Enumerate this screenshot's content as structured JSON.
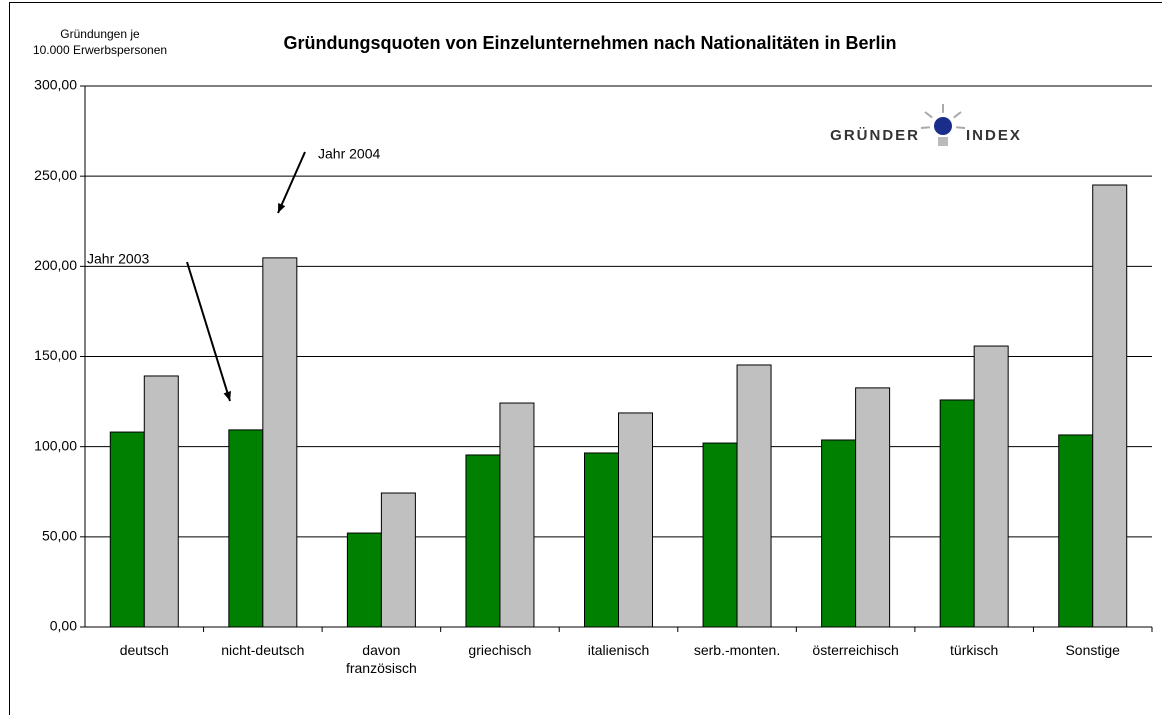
{
  "chart_data": {
    "type": "bar",
    "title": "Gründungsquoten von Einzelunternehmen nach Nationalitäten in Berlin",
    "y_label": "Gründungen je\n10.000 Erwerbspersonen",
    "categories": [
      "deutsch",
      "nicht-deutsch",
      "davon\nfranzösisch",
      "griechisch",
      "italienisch",
      "serb.-monten.",
      "österreichisch",
      "türkisch",
      "Sonstige"
    ],
    "series": [
      {
        "color": "#008000",
        "values": [
          108.1,
          109.3,
          52.1,
          95.4,
          96.5,
          102.0,
          103.7,
          125.9,
          106.5
        ]
      },
      {
        "color": "#c0c0c0",
        "values": [
          139.2,
          204.7,
          74.3,
          124.2,
          118.7,
          145.3,
          132.6,
          155.8,
          245.1
        ]
      }
    ],
    "annotations": [
      "Jahr 2004",
      "Jahr 2003"
    ],
    "logo": [
      "GRÜNDER",
      "INDEX"
    ],
    "ylim": [
      0,
      300
    ],
    "yticks": [
      {
        "value": 0,
        "label": "0,00"
      },
      {
        "value": 50,
        "label": "50,00"
      },
      {
        "value": 100,
        "label": "100,00"
      },
      {
        "value": 150,
        "label": "150,00"
      },
      {
        "value": 200,
        "label": "200,00"
      },
      {
        "value": 250,
        "label": "250,00"
      },
      {
        "value": 300,
        "label": "300,00"
      }
    ],
    "grid": true
  }
}
